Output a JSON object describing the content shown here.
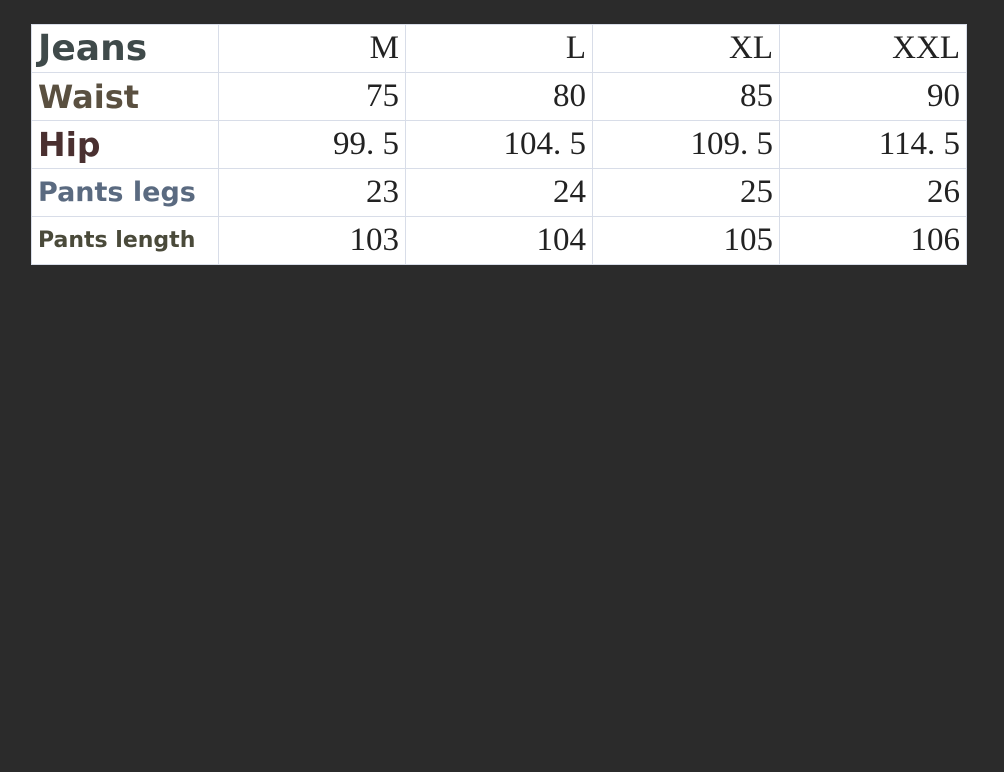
{
  "table": {
    "header": {
      "label": "Jeans",
      "sizes": [
        "M",
        "L",
        "XL",
        "XXL"
      ]
    },
    "rows": [
      {
        "label": "Waist",
        "values": [
          "75",
          "80",
          "85",
          "90"
        ]
      },
      {
        "label": "Hip",
        "values": [
          "99. 5",
          "104. 5",
          "109. 5",
          "114. 5"
        ]
      },
      {
        "label": "Pants legs",
        "values": [
          "23",
          "24",
          "25",
          "26"
        ]
      },
      {
        "label": "Pants length",
        "values": [
          "103",
          "104",
          "105",
          "106"
        ]
      }
    ],
    "label_colors": [
      "#3f4a4a",
      "#5a5040",
      "#4a3030",
      "#5a6a80",
      "#4a4a3a"
    ]
  }
}
